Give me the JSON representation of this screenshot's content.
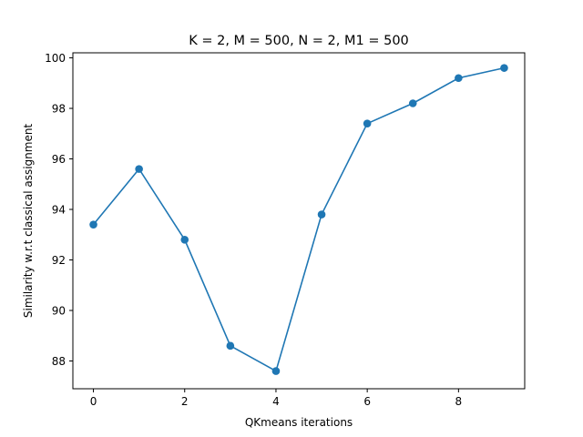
{
  "chart_data": {
    "type": "line",
    "title": "K = 2, M = 500, N = 2, M1 = 500",
    "xlabel": "QKmeans iterations",
    "ylabel": "Similarity w.r.t classical assignment",
    "x": [
      0,
      1,
      2,
      3,
      4,
      5,
      6,
      7,
      8,
      9
    ],
    "series": [
      {
        "values": [
          93.4,
          95.6,
          92.8,
          88.6,
          87.6,
          93.8,
          97.4,
          98.2,
          99.2,
          99.6
        ],
        "color": "#1f77b4",
        "marker": "circle"
      }
    ],
    "xlim": [
      -0.45,
      9.45
    ],
    "ylim": [
      86.9,
      100.2
    ],
    "xticks": [
      0,
      2,
      4,
      6,
      8
    ],
    "yticks": [
      88,
      90,
      92,
      94,
      96,
      98,
      100
    ],
    "grid": false,
    "legend": "none"
  }
}
